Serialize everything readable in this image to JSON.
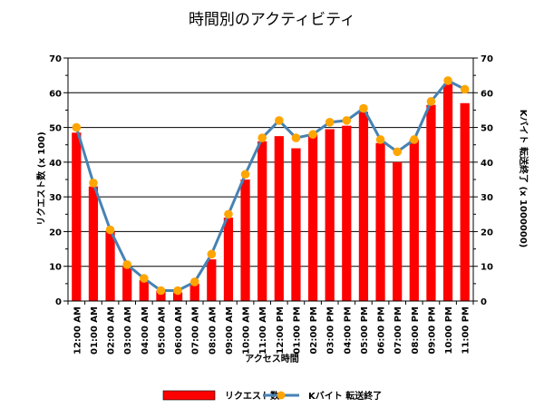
{
  "chart_data": {
    "type": "bar",
    "title": "時間別のアクティビティ",
    "xlabel": "アクセス時間",
    "ylabel": "リクエスト数 (x 100)",
    "y2label": "Kバイト 転送終了 (x 1000000)",
    "ylim": [
      0,
      70
    ],
    "y2lim": [
      0,
      70
    ],
    "yticks": [
      "0",
      "10",
      "20",
      "30",
      "40",
      "50",
      "60",
      "70"
    ],
    "grid": true,
    "legend_position": "bottom",
    "categories": [
      "12:00 AM",
      "01:00 AM",
      "02:00 AM",
      "03:00 AM",
      "04:00 AM",
      "05:00 AM",
      "06:00 AM",
      "07:00 AM",
      "08:00 AM",
      "09:00 AM",
      "10:00 AM",
      "11:00 AM",
      "12:00 PM",
      "01:00 PM",
      "02:00 PM",
      "03:00 PM",
      "04:00 PM",
      "05:00 PM",
      "06:00 PM",
      "07:00 PM",
      "08:00 PM",
      "09:00 PM",
      "10:00 PM",
      "11:00 PM"
    ],
    "series": [
      {
        "name": "リクエスト数",
        "type": "bar",
        "axis": "left",
        "color": "#ff0000",
        "values": [
          48.5,
          33,
          20,
          10,
          6,
          3,
          2.5,
          5,
          12,
          24,
          35,
          46,
          47.5,
          44,
          48,
          49.5,
          50.5,
          54.5,
          45.5,
          40,
          46.5,
          56.5,
          62.5,
          57
        ]
      },
      {
        "name": "Kバイト 転送終了",
        "type": "line",
        "axis": "right",
        "color": "#4682b4",
        "marker_color": "#ffa500",
        "values": [
          50,
          34,
          20.5,
          10.5,
          6.5,
          3,
          3,
          5.5,
          13.5,
          25,
          36.5,
          47,
          52,
          47,
          48,
          51.5,
          52,
          55.5,
          46.5,
          43,
          46.5,
          57.5,
          63.5,
          61
        ]
      }
    ]
  }
}
